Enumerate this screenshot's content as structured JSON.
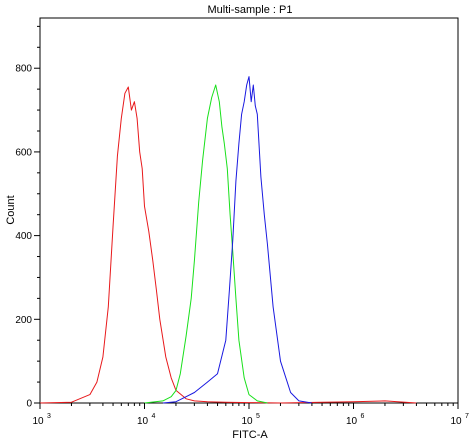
{
  "chart_data": {
    "type": "line",
    "title": "Multi-sample : P1",
    "xlabel": "FITC-A",
    "ylabel": "Count",
    "x_scale": "log",
    "xlim": [
      1000,
      10000000
    ],
    "ylim": [
      0,
      920
    ],
    "x_ticks": [
      {
        "base": "10",
        "exp": "3",
        "value": 1000
      },
      {
        "base": "10",
        "exp": "4",
        "value": 10000
      },
      {
        "base": "10",
        "exp": "5",
        "value": 100000
      },
      {
        "base": "10",
        "exp": "6",
        "value": 1000000
      },
      {
        "base": "10",
        "exp": "7",
        "value": 10000000
      }
    ],
    "y_ticks": [
      "0",
      "200",
      "400",
      "600",
      "800"
    ],
    "grid": false,
    "legend": "none",
    "series": [
      {
        "color": "#e8191b",
        "x": [
          1000,
          2000,
          3000,
          3500,
          4000,
          4500,
          5000,
          5500,
          6000,
          6500,
          7000,
          7500,
          8000,
          8500,
          9000,
          9500,
          10000,
          11000,
          12000,
          13000,
          14000,
          16000,
          18000,
          20000,
          25000,
          30000,
          40000,
          60000,
          100000,
          200000,
          500000,
          1000000,
          2000000,
          4000000
        ],
        "y": [
          0,
          2,
          20,
          50,
          110,
          230,
          420,
          590,
          680,
          740,
          755,
          700,
          720,
          680,
          600,
          560,
          470,
          410,
          340,
          270,
          200,
          110,
          60,
          30,
          10,
          5,
          3,
          2,
          1,
          0,
          2,
          3,
          5,
          0
        ]
      },
      {
        "color": "#19e01b",
        "x": [
          10000,
          15000,
          18000,
          20000,
          22000,
          25000,
          28000,
          30000,
          33000,
          36000,
          40000,
          44000,
          48000,
          52000,
          55000,
          58000,
          62000,
          66000,
          70000,
          75000,
          80000,
          90000,
          100000,
          120000,
          150000
        ],
        "y": [
          0,
          5,
          15,
          30,
          70,
          160,
          250,
          340,
          480,
          580,
          680,
          730,
          760,
          720,
          660,
          620,
          560,
          450,
          360,
          250,
          150,
          60,
          20,
          5,
          0
        ]
      },
      {
        "color": "#1919e0",
        "x": [
          15000,
          20000,
          25000,
          30000,
          40000,
          50000,
          60000,
          65000,
          70000,
          75000,
          80000,
          85000,
          90000,
          95000,
          100000,
          105000,
          110000,
          115000,
          120000,
          130000,
          140000,
          150000,
          170000,
          200000,
          250000,
          300000,
          400000
        ],
        "y": [
          0,
          3,
          15,
          25,
          50,
          70,
          150,
          270,
          390,
          530,
          620,
          690,
          720,
          760,
          780,
          720,
          760,
          710,
          690,
          540,
          450,
          380,
          230,
          100,
          25,
          5,
          0
        ]
      }
    ]
  }
}
